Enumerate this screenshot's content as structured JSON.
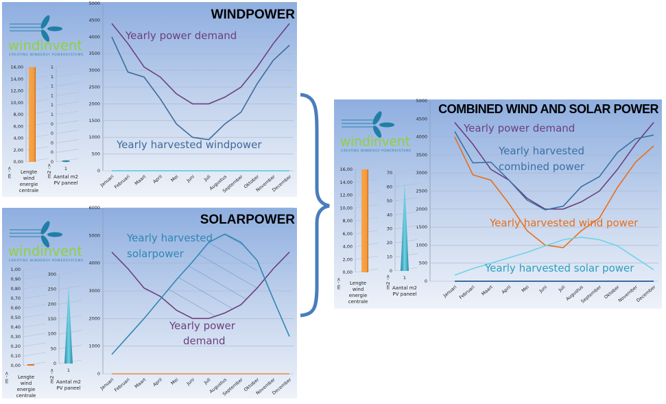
{
  "colors": {
    "demand": "#6a3f7e",
    "wind": "#3d6a9c",
    "wind_orange": "#e86d17",
    "solar": "#2f86b4",
    "solar_light": "#6fd3e6",
    "combined": "#3b6fa5",
    "brace": "#4a7dbc",
    "bar": "#f59a3c",
    "spike": "#3fb0c8"
  },
  "logo": {
    "name": "windinvent",
    "tagline": "CREATING WINDERGY POWERSYSTEMS"
  },
  "small_labels": {
    "wind_axis": "m ->",
    "wind_caption": [
      "Lengte",
      "wind",
      "energie",
      "centrale"
    ],
    "pv_axis": "m2 ->",
    "pv_caption": [
      "Aantal m2",
      "PV paneel"
    ],
    "pv_category": "1"
  },
  "chart_data": [
    {
      "id": "windpower",
      "type": "line",
      "title": "WINDPOWER",
      "categories": [
        "Januari",
        "Februari",
        "Maart",
        "April",
        "Mei",
        "Juni",
        "Juli",
        "Augustus",
        "September",
        "Oktober",
        "November",
        "December"
      ],
      "ylim": [
        0,
        5000
      ],
      "yticks": [
        "0",
        "500",
        "1000",
        "1500",
        "2000",
        "2500",
        "3000",
        "3500",
        "4000",
        "4500",
        "5000"
      ],
      "grid": true,
      "series": [
        {
          "name": "Yearly power demand",
          "color": "#6a3f7e",
          "values": [
            4400,
            3800,
            3100,
            2800,
            2300,
            2000,
            2000,
            2200,
            2500,
            3100,
            3800,
            4400
          ]
        },
        {
          "name": "Yearly harvested windpower",
          "color": "#3d6a9c",
          "values": [
            4000,
            2950,
            2800,
            2150,
            1400,
            1000,
            930,
            1400,
            1750,
            2600,
            3300,
            3750
          ]
        },
        {
          "color": "#6fd3e6",
          "values": [
            0,
            0,
            0,
            0,
            0,
            0,
            0,
            0,
            0,
            0,
            0,
            0
          ]
        }
      ],
      "side_bars": {
        "wind": {
          "value": 16,
          "ylim": [
            0,
            16
          ],
          "yticks": [
            "0,00",
            "2,00",
            "4,00",
            "6,00",
            "8,00",
            "10,00",
            "12,00",
            "14,00",
            "16,00"
          ]
        },
        "pv": {
          "value": 0,
          "ylim": [
            0,
            1
          ],
          "yticks": [
            "0",
            "0",
            "0",
            "0",
            "0",
            "1",
            "1",
            "1",
            "1",
            "1",
            "1"
          ]
        }
      }
    },
    {
      "id": "solarpower",
      "type": "line",
      "title": "SOLARPOWER",
      "categories": [
        "Januari",
        "Februari",
        "Maart",
        "April",
        "Mei",
        "Juni",
        "Juli",
        "Augustus",
        "September",
        "Oktober",
        "November",
        "December"
      ],
      "ylim": [
        0,
        6000
      ],
      "yticks": [
        "0",
        "1000",
        "2000",
        "3000",
        "4000",
        "5000",
        "6000"
      ],
      "grid": true,
      "series": [
        {
          "name": "Yearly power demand",
          "color": "#6a3f7e",
          "values": [
            4400,
            3800,
            3100,
            2800,
            2300,
            2000,
            2000,
            2200,
            2500,
            3100,
            3800,
            4400
          ]
        },
        {
          "name": "Yearly harvested solarpower",
          "color": "#2f86b4",
          "values": [
            700,
            1350,
            2000,
            2700,
            3400,
            4050,
            4750,
            5050,
            4750,
            4100,
            2700,
            1350
          ]
        },
        {
          "color": "#e8a070",
          "values": [
            0,
            0,
            0,
            0,
            0,
            0,
            0,
            0,
            0,
            0,
            0,
            0
          ]
        }
      ],
      "side_bars": {
        "wind": {
          "value": 0,
          "ylim": [
            0,
            1
          ],
          "yticks": [
            "0,00",
            "0,10",
            "0,20",
            "0,30",
            "0,40",
            "0,50",
            "0,60",
            "0,70",
            "0,80",
            "0,90",
            "1,00"
          ]
        },
        "pv": {
          "value": 260,
          "ylim": [
            0,
            300
          ],
          "yticks": [
            "0",
            "50",
            "100",
            "150",
            "200",
            "250",
            "300"
          ]
        }
      }
    },
    {
      "id": "combined",
      "type": "line",
      "title": "COMBINED WIND AND SOLAR POWER",
      "categories": [
        "Januari",
        "Februari",
        "Maart",
        "April",
        "Mei",
        "Juni",
        "Juli",
        "Augustus",
        "September",
        "Oktober",
        "November",
        "December"
      ],
      "ylim": [
        0,
        5000
      ],
      "yticks": [
        "0",
        "500",
        "1000",
        "1500",
        "2000",
        "2500",
        "3000",
        "3500",
        "4000",
        "4500",
        "5000"
      ],
      "grid": true,
      "series": [
        {
          "name": "Yearly power demand",
          "color": "#6a3f7e",
          "values": [
            4400,
            3800,
            3100,
            2800,
            2300,
            2000,
            2000,
            2200,
            2500,
            3100,
            3800,
            4400
          ]
        },
        {
          "name": "Yearly harvested combined power",
          "color": "#3b6fa5",
          "values": [
            4150,
            3280,
            3300,
            2800,
            2250,
            1980,
            2080,
            2620,
            2900,
            3570,
            3950,
            4050
          ]
        },
        {
          "name": "Yearly harvested wind power",
          "color": "#e86d17",
          "values": [
            4000,
            2950,
            2800,
            2150,
            1400,
            1000,
            930,
            1400,
            1750,
            2600,
            3300,
            3750
          ]
        },
        {
          "name": "Yearly harvested solar power",
          "color": "#6fd3e6",
          "values": [
            170,
            350,
            500,
            650,
            800,
            980,
            1150,
            1220,
            1150,
            980,
            650,
            320
          ]
        },
        {
          "color": "#3d6a9c",
          "values": [
            0,
            0,
            0,
            0,
            0,
            0,
            0,
            0,
            0,
            0,
            0,
            0
          ]
        }
      ],
      "side_bars": {
        "wind": {
          "value": 16,
          "ylim": [
            0,
            16
          ],
          "yticks": [
            "0,00",
            "2,00",
            "4,00",
            "6,00",
            "8,00",
            "10,00",
            "12,00",
            "14,00",
            "16,00"
          ]
        },
        "pv": {
          "value": 63,
          "ylim": [
            0,
            70
          ],
          "yticks": [
            "0",
            "10",
            "20",
            "30",
            "40",
            "50",
            "60",
            "70"
          ]
        }
      }
    }
  ]
}
